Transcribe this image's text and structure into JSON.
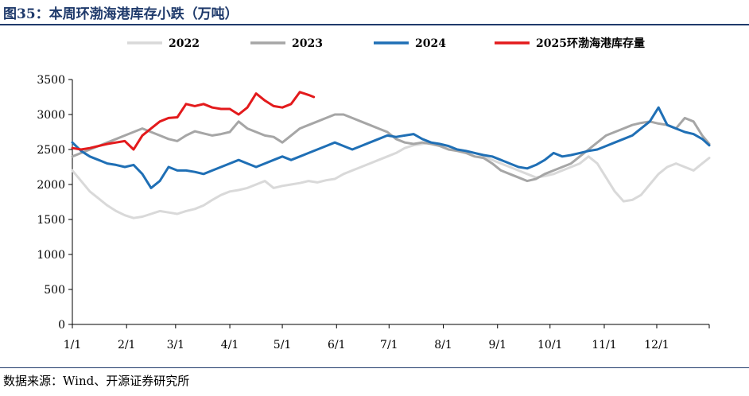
{
  "figure": {
    "title": "图35：本周环渤海港库存小跌（万吨）",
    "source": "数据来源：Wind、开源证券研究所"
  },
  "chart_data": {
    "type": "line",
    "title": "本周环渤海港库存小跌",
    "unit": "万吨",
    "xlabel": "",
    "ylabel": "",
    "ylim": [
      0,
      3500
    ],
    "yticks": [
      0,
      500,
      1000,
      1500,
      2000,
      2500,
      3000,
      3500
    ],
    "xticks": [
      "1/1",
      "2/1",
      "3/1",
      "4/1",
      "5/1",
      "6/1",
      "7/1",
      "8/1",
      "9/1",
      "10/1",
      "11/1",
      "12/1"
    ],
    "xtick_days": [
      0,
      31,
      59,
      90,
      120,
      151,
      181,
      212,
      243,
      273,
      304,
      334
    ],
    "x_unit": "day of year",
    "grid": false,
    "legend_position": "top",
    "series": [
      {
        "name": "2022",
        "color": "#d9d9d9",
        "x": [
          0,
          5,
          10,
          15,
          20,
          25,
          30,
          35,
          40,
          45,
          50,
          55,
          60,
          65,
          70,
          75,
          80,
          85,
          90,
          95,
          100,
          105,
          110,
          115,
          120,
          125,
          130,
          135,
          140,
          145,
          150,
          155,
          160,
          165,
          170,
          175,
          180,
          185,
          190,
          195,
          200,
          205,
          210,
          215,
          220,
          225,
          230,
          235,
          240,
          245,
          250,
          255,
          260,
          265,
          270,
          275,
          280,
          285,
          290,
          295,
          300,
          305,
          310,
          315,
          320,
          325,
          330,
          335,
          340,
          345,
          350,
          355,
          360,
          364
        ],
        "values": [
          2200,
          2050,
          1900,
          1800,
          1700,
          1620,
          1560,
          1520,
          1540,
          1580,
          1620,
          1600,
          1580,
          1620,
          1650,
          1700,
          1780,
          1850,
          1900,
          1920,
          1950,
          2000,
          2050,
          1950,
          1980,
          2000,
          2020,
          2050,
          2030,
          2060,
          2080,
          2150,
          2200,
          2250,
          2300,
          2350,
          2400,
          2450,
          2520,
          2560,
          2580,
          2600,
          2560,
          2540,
          2500,
          2480,
          2450,
          2400,
          2350,
          2300,
          2250,
          2200,
          2150,
          2100,
          2120,
          2150,
          2200,
          2250,
          2300,
          2400,
          2300,
          2100,
          1900,
          1760,
          1780,
          1850,
          2000,
          2150,
          2250,
          2300,
          2250,
          2200,
          2300,
          2380
        ]
      },
      {
        "name": "2023",
        "color": "#a6a6a6",
        "x": [
          0,
          5,
          10,
          15,
          20,
          25,
          30,
          35,
          40,
          45,
          50,
          55,
          60,
          65,
          70,
          75,
          80,
          85,
          90,
          95,
          100,
          105,
          110,
          115,
          120,
          125,
          130,
          135,
          140,
          145,
          150,
          155,
          160,
          165,
          170,
          175,
          180,
          185,
          190,
          195,
          200,
          205,
          210,
          215,
          220,
          225,
          230,
          235,
          240,
          245,
          250,
          255,
          260,
          265,
          270,
          275,
          280,
          285,
          290,
          295,
          300,
          305,
          310,
          315,
          320,
          325,
          330,
          335,
          340,
          345,
          350,
          355,
          360,
          364
        ],
        "values": [
          2400,
          2450,
          2500,
          2550,
          2600,
          2650,
          2700,
          2750,
          2800,
          2750,
          2700,
          2650,
          2620,
          2700,
          2760,
          2730,
          2700,
          2720,
          2750,
          2900,
          2800,
          2750,
          2700,
          2680,
          2600,
          2700,
          2800,
          2850,
          2900,
          2950,
          3000,
          3000,
          2950,
          2900,
          2850,
          2800,
          2750,
          2650,
          2600,
          2580,
          2600,
          2580,
          2550,
          2500,
          2480,
          2450,
          2400,
          2380,
          2300,
          2200,
          2150,
          2100,
          2050,
          2080,
          2150,
          2200,
          2250,
          2300,
          2400,
          2500,
          2600,
          2700,
          2750,
          2800,
          2850,
          2880,
          2900,
          2870,
          2850,
          2800,
          2950,
          2900,
          2700,
          2580
        ]
      },
      {
        "name": "2024",
        "color": "#1f6fb5",
        "x": [
          0,
          5,
          10,
          15,
          20,
          25,
          30,
          35,
          40,
          45,
          50,
          55,
          60,
          65,
          70,
          75,
          80,
          85,
          90,
          95,
          100,
          105,
          110,
          115,
          120,
          125,
          130,
          135,
          140,
          145,
          150,
          155,
          160,
          165,
          170,
          175,
          180,
          185,
          190,
          195,
          200,
          205,
          210,
          215,
          220,
          225,
          230,
          235,
          240,
          245,
          250,
          255,
          260,
          265,
          270,
          275,
          280,
          285,
          290,
          295,
          300,
          305,
          310,
          315,
          320,
          325,
          330,
          335,
          340,
          345,
          350,
          355,
          360,
          364
        ],
        "values": [
          2600,
          2480,
          2400,
          2350,
          2300,
          2280,
          2250,
          2280,
          2150,
          1950,
          2050,
          2250,
          2200,
          2200,
          2180,
          2150,
          2200,
          2250,
          2300,
          2350,
          2300,
          2250,
          2300,
          2350,
          2400,
          2350,
          2400,
          2450,
          2500,
          2550,
          2600,
          2550,
          2500,
          2550,
          2600,
          2650,
          2700,
          2680,
          2700,
          2720,
          2650,
          2600,
          2580,
          2550,
          2500,
          2480,
          2450,
          2420,
          2400,
          2350,
          2300,
          2250,
          2230,
          2280,
          2350,
          2450,
          2400,
          2420,
          2450,
          2480,
          2500,
          2550,
          2600,
          2650,
          2700,
          2800,
          2900,
          3100,
          2850,
          2800,
          2750,
          2720,
          2650,
          2560
        ]
      },
      {
        "name": "2025环渤海港库存量",
        "color": "#e31a1c",
        "x": [
          0,
          5,
          10,
          15,
          20,
          25,
          30,
          35,
          40,
          45,
          50,
          55,
          60,
          65,
          70,
          75,
          80,
          85,
          90,
          95,
          100,
          105,
          110,
          115,
          120,
          125,
          130,
          135,
          138
        ],
        "values": [
          2520,
          2500,
          2520,
          2550,
          2580,
          2600,
          2620,
          2500,
          2700,
          2800,
          2900,
          2950,
          2960,
          3150,
          3120,
          3150,
          3100,
          3080,
          3080,
          3000,
          3100,
          3300,
          3200,
          3120,
          3100,
          3150,
          3320,
          3280,
          3250
        ]
      }
    ]
  }
}
